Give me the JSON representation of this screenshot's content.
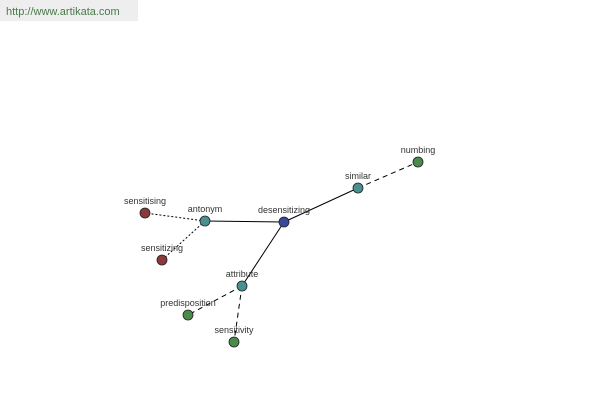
{
  "header": {
    "url": "http://www.artikata.com"
  },
  "nodes": [
    {
      "label": "desensitizing"
    },
    {
      "label": "antonym"
    },
    {
      "label": "similar"
    },
    {
      "label": "attribute"
    },
    {
      "label": "numbing"
    },
    {
      "label": "sensitising"
    },
    {
      "label": "sensitizing"
    },
    {
      "label": "predisposition"
    },
    {
      "label": "sensitivity"
    }
  ]
}
